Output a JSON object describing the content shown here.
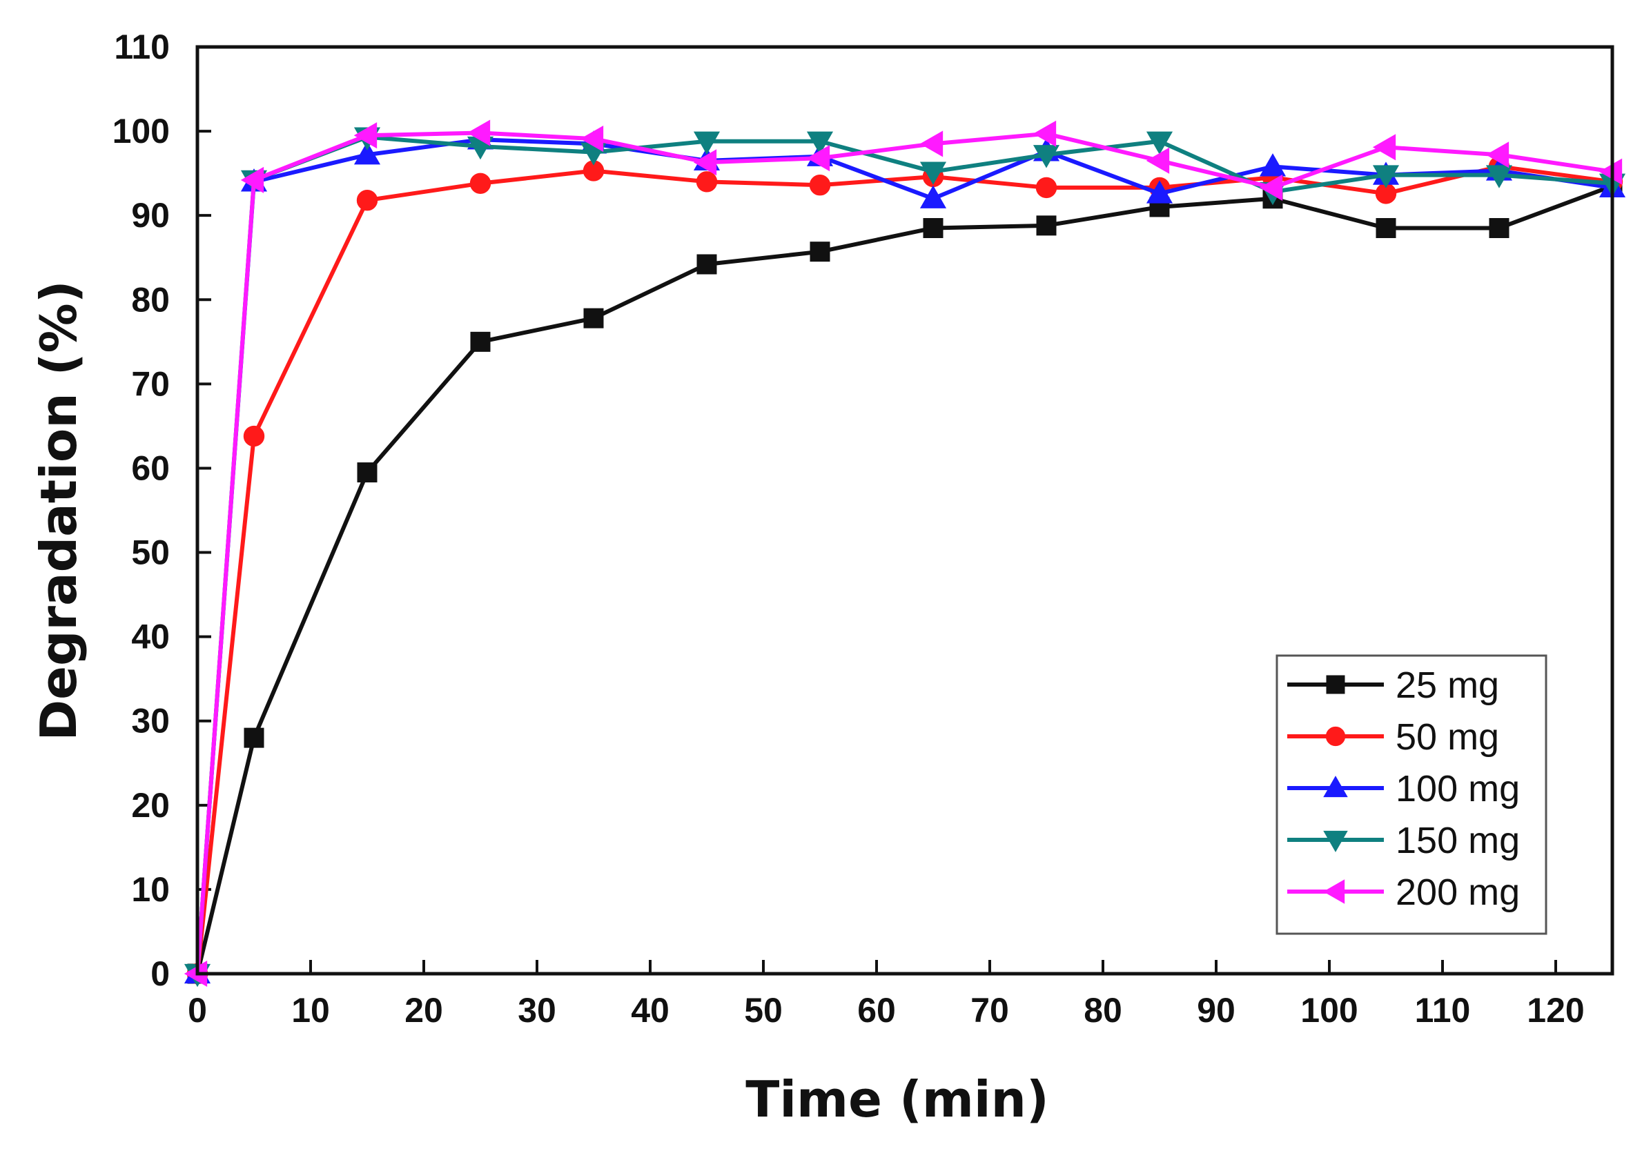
{
  "chart_data": {
    "type": "line",
    "title": "",
    "xlabel": "Time (min)",
    "ylabel": "Degradation (%)",
    "xlim": [
      0,
      125
    ],
    "ylim": [
      0,
      110
    ],
    "grid": false,
    "legend_position": "bottom-right",
    "x_ticks": [
      0,
      10,
      20,
      30,
      40,
      50,
      60,
      70,
      80,
      90,
      100,
      110,
      120
    ],
    "y_ticks": [
      0,
      10,
      20,
      30,
      40,
      50,
      60,
      70,
      80,
      90,
      100,
      110
    ],
    "x": [
      0,
      5,
      15,
      25,
      35,
      45,
      55,
      65,
      75,
      85,
      95,
      105,
      115,
      125
    ],
    "series": [
      {
        "name": "25 mg",
        "color": "#111111",
        "marker": "square",
        "values": [
          0,
          28,
          59.5,
          75,
          77.8,
          84.2,
          85.7,
          88.5,
          88.8,
          91,
          92,
          88.5,
          88.5,
          93.5
        ]
      },
      {
        "name": "50 mg",
        "color": "#ff1a1a",
        "marker": "circle",
        "values": [
          0,
          63.8,
          91.8,
          93.8,
          95.3,
          94,
          93.6,
          94.6,
          93.3,
          93.3,
          94.5,
          92.6,
          95.8,
          94
        ]
      },
      {
        "name": "100 mg",
        "color": "#1a1aff",
        "marker": "triangle-up",
        "values": [
          0,
          94,
          97.2,
          99,
          98.5,
          96.5,
          97,
          92,
          97.6,
          92.6,
          95.8,
          94.8,
          95.3,
          93.3
        ]
      },
      {
        "name": "150 mg",
        "color": "#0f8080",
        "marker": "triangle-down",
        "values": [
          0,
          94.2,
          99.3,
          98.2,
          97.5,
          98.8,
          98.8,
          95.2,
          97.2,
          98.8,
          92.8,
          94.8,
          94.8,
          93.8
        ]
      },
      {
        "name": "200 mg",
        "color": "#ff1aff",
        "marker": "triangle-left",
        "values": [
          0,
          94.2,
          99.5,
          99.8,
          99.1,
          96.3,
          96.8,
          98.5,
          99.7,
          96.5,
          93.3,
          98.1,
          97.2,
          95.2
        ]
      }
    ]
  }
}
